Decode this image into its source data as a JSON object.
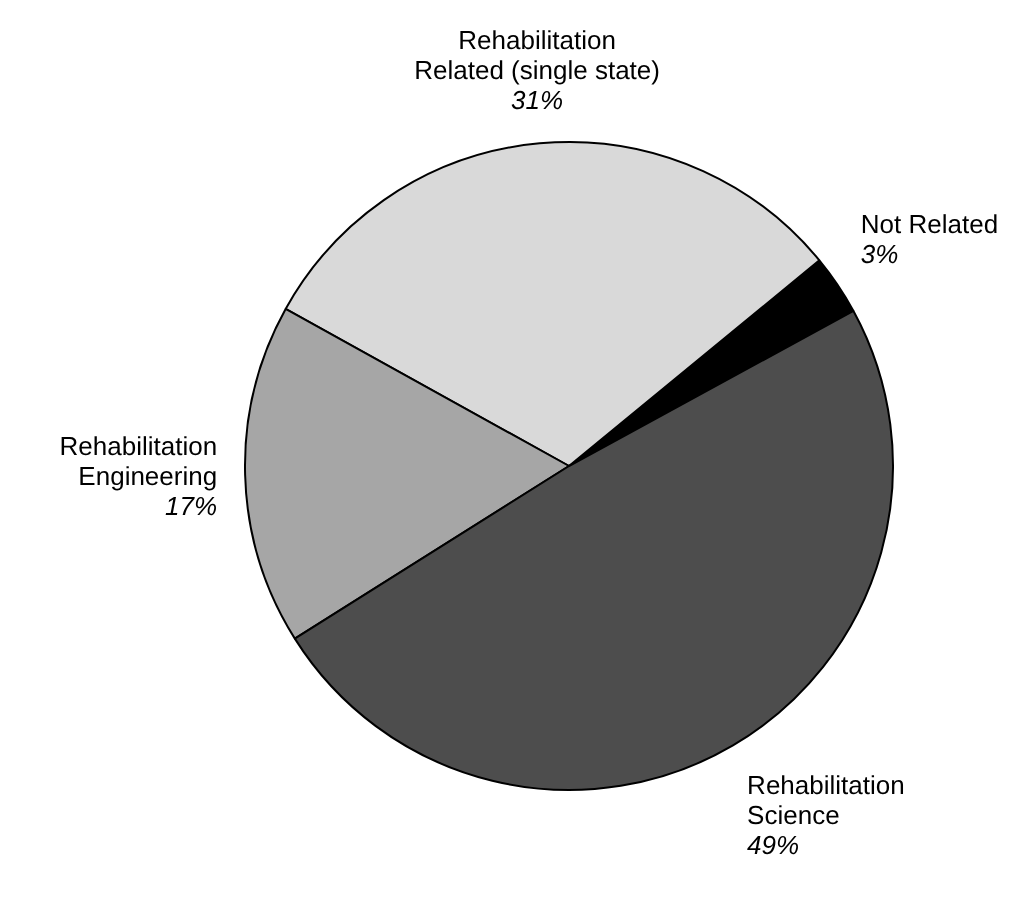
{
  "chart_data": {
    "type": "pie",
    "categories": [
      "Not Related",
      "Rehabilitation\nRelated (single state)",
      "Rehabilitation\nEngineering",
      "Rehabilitation\nScience"
    ],
    "values": [
      3,
      31,
      17,
      49
    ],
    "value_labels": [
      "3%",
      "31%",
      "17%",
      "49%"
    ],
    "colors": [
      "#000000",
      "#d9d9d9",
      "#a6a6a6",
      "#4d4d4d"
    ]
  }
}
